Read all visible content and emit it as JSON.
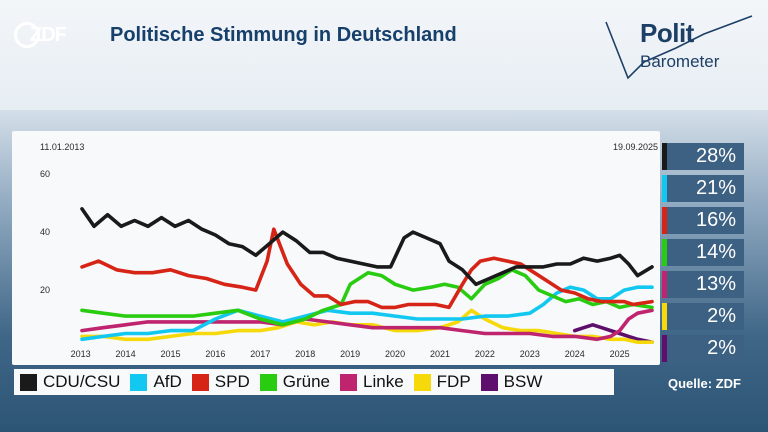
{
  "header": {
    "logo_text": "ZDF",
    "title": "Politische Stimmung in Deutschland",
    "brand_line1": "Polit",
    "brand_line2": "Barometer"
  },
  "chart_data": {
    "type": "line",
    "title": "Politische Stimmung in Deutschland",
    "date_start": "11.01.2013",
    "date_end": "19.09.2025",
    "x_tick_labels": [
      "2013",
      "2014",
      "2015",
      "2016",
      "2017",
      "2018",
      "2019",
      "2020",
      "2021",
      "2022",
      "2023",
      "2024",
      "2025"
    ],
    "y_ticks": [
      20,
      40,
      60
    ],
    "ylim": [
      0,
      68
    ],
    "xlim": [
      2013.03,
      2025.72
    ],
    "grid": false,
    "legend_position": "bottom",
    "series": [
      {
        "name": "CDU/CSU",
        "color": "#1a1a1a",
        "final_label": "28%",
        "x": [
          2013.03,
          2013.3,
          2013.6,
          2013.9,
          2014.2,
          2014.5,
          2014.8,
          2015.1,
          2015.4,
          2015.7,
          2016.0,
          2016.3,
          2016.6,
          2016.9,
          2017.2,
          2017.5,
          2017.8,
          2018.1,
          2018.4,
          2018.7,
          2019.0,
          2019.3,
          2019.6,
          2019.9,
          2020.2,
          2020.4,
          2020.7,
          2021.0,
          2021.2,
          2021.5,
          2021.8,
          2022.1,
          2022.4,
          2022.7,
          2023.0,
          2023.3,
          2023.6,
          2023.9,
          2024.2,
          2024.5,
          2024.8,
          2025.0,
          2025.2,
          2025.4,
          2025.72
        ],
        "values": [
          48,
          42,
          46,
          42,
          44,
          42,
          45,
          42,
          44,
          41,
          39,
          36,
          35,
          32,
          36,
          40,
          37,
          33,
          33,
          31,
          30,
          29,
          28,
          28,
          38,
          40,
          38,
          36,
          30,
          27,
          22,
          24,
          26,
          28,
          28,
          28,
          29,
          29,
          31,
          30,
          31,
          32,
          29,
          25,
          28
        ]
      },
      {
        "name": "SPD",
        "color": "#d62417",
        "final_label": "16%",
        "x": [
          2013.03,
          2013.4,
          2013.8,
          2014.2,
          2014.6,
          2015.0,
          2015.4,
          2015.8,
          2016.2,
          2016.6,
          2016.9,
          2017.15,
          2017.3,
          2017.6,
          2017.9,
          2018.2,
          2018.5,
          2018.8,
          2019.1,
          2019.4,
          2019.7,
          2020.0,
          2020.3,
          2020.6,
          2020.9,
          2021.2,
          2021.5,
          2021.7,
          2021.9,
          2022.2,
          2022.5,
          2022.8,
          2023.1,
          2023.4,
          2023.7,
          2024.0,
          2024.3,
          2024.6,
          2024.9,
          2025.1,
          2025.3,
          2025.72
        ],
        "values": [
          28,
          30,
          27,
          26,
          26,
          27,
          25,
          24,
          22,
          21,
          20,
          30,
          41,
          29,
          22,
          18,
          18,
          15,
          16,
          16,
          14,
          14,
          15,
          15,
          15,
          14,
          22,
          27,
          30,
          31,
          30,
          29,
          26,
          23,
          20,
          19,
          17,
          16,
          16,
          16,
          15,
          16
        ]
      },
      {
        "name": "Grüne",
        "color": "#29cc10",
        "final_label": "14%",
        "x": [
          2013.03,
          2013.5,
          2014.0,
          2014.5,
          2015.0,
          2015.5,
          2016.0,
          2016.5,
          2017.0,
          2017.5,
          2018.0,
          2018.4,
          2018.8,
          2019.0,
          2019.4,
          2019.7,
          2020.0,
          2020.4,
          2020.8,
          2021.1,
          2021.4,
          2021.7,
          2022.0,
          2022.3,
          2022.6,
          2022.9,
          2023.2,
          2023.5,
          2023.8,
          2024.1,
          2024.4,
          2024.7,
          2025.0,
          2025.3,
          2025.72
        ],
        "values": [
          13,
          12,
          11,
          11,
          11,
          11,
          12,
          13,
          10,
          8,
          10,
          13,
          15,
          22,
          26,
          25,
          22,
          20,
          21,
          22,
          21,
          17,
          22,
          24,
          27,
          25,
          20,
          18,
          16,
          17,
          15,
          16,
          14,
          15,
          14
        ]
      },
      {
        "name": "AfD",
        "color": "#12c8f0",
        "final_label": "21%",
        "x": [
          2013.03,
          2013.5,
          2014.0,
          2014.5,
          2015.0,
          2015.5,
          2016.0,
          2016.5,
          2017.0,
          2017.5,
          2018.0,
          2018.5,
          2019.0,
          2019.5,
          2020.0,
          2020.5,
          2021.0,
          2021.5,
          2022.0,
          2022.5,
          2023.0,
          2023.3,
          2023.6,
          2023.9,
          2024.2,
          2024.5,
          2024.8,
          2025.1,
          2025.4,
          2025.72
        ],
        "values": [
          3,
          4,
          5,
          5,
          6,
          6,
          10,
          13,
          11,
          9,
          11,
          13,
          12,
          12,
          11,
          10,
          10,
          10,
          11,
          11,
          12,
          15,
          19,
          21,
          20,
          17,
          17,
          20,
          21,
          21
        ]
      },
      {
        "name": "Linke",
        "color": "#bf246e",
        "final_label": "13%",
        "x": [
          2013.03,
          2013.5,
          2014.0,
          2014.5,
          2015.0,
          2015.5,
          2016.0,
          2016.5,
          2017.0,
          2017.5,
          2018.0,
          2018.5,
          2019.0,
          2019.5,
          2020.0,
          2020.5,
          2021.0,
          2021.5,
          2022.0,
          2022.5,
          2023.0,
          2023.5,
          2024.0,
          2024.5,
          2024.8,
          2025.0,
          2025.2,
          2025.4,
          2025.72
        ],
        "values": [
          6,
          7,
          8,
          9,
          9,
          9,
          9,
          9,
          9,
          8,
          10,
          9,
          8,
          7,
          7,
          7,
          7,
          6,
          5,
          5,
          5,
          4,
          4,
          3,
          4,
          6,
          10,
          12,
          13
        ]
      },
      {
        "name": "FDP",
        "color": "#f5d90a",
        "final_label": "2%",
        "x": [
          2013.03,
          2013.5,
          2014.0,
          2014.5,
          2015.0,
          2015.5,
          2016.0,
          2016.5,
          2017.0,
          2017.4,
          2017.8,
          2018.2,
          2018.6,
          2019.0,
          2019.5,
          2020.0,
          2020.5,
          2021.0,
          2021.4,
          2021.7,
          2022.0,
          2022.4,
          2022.8,
          2023.2,
          2023.6,
          2024.0,
          2024.4,
          2024.8,
          2025.1,
          2025.4,
          2025.72
        ],
        "values": [
          4,
          4,
          3,
          3,
          4,
          5,
          5,
          6,
          6,
          7,
          9,
          8,
          9,
          8,
          8,
          6,
          6,
          7,
          9,
          13,
          10,
          7,
          6,
          6,
          5,
          4,
          4,
          3,
          3,
          2,
          2
        ]
      },
      {
        "name": "BSW",
        "color": "#5e0f6e",
        "final_label": "2%",
        "x": [
          2024.0,
          2024.2,
          2024.4,
          2024.6,
          2024.8,
          2025.0,
          2025.2,
          2025.4,
          2025.72
        ],
        "values": [
          6,
          7,
          8,
          7,
          6,
          5,
          4,
          3,
          2
        ]
      }
    ]
  },
  "badges_order": [
    0,
    3,
    1,
    2,
    4,
    5,
    6
  ],
  "source": "Quelle: ZDF"
}
